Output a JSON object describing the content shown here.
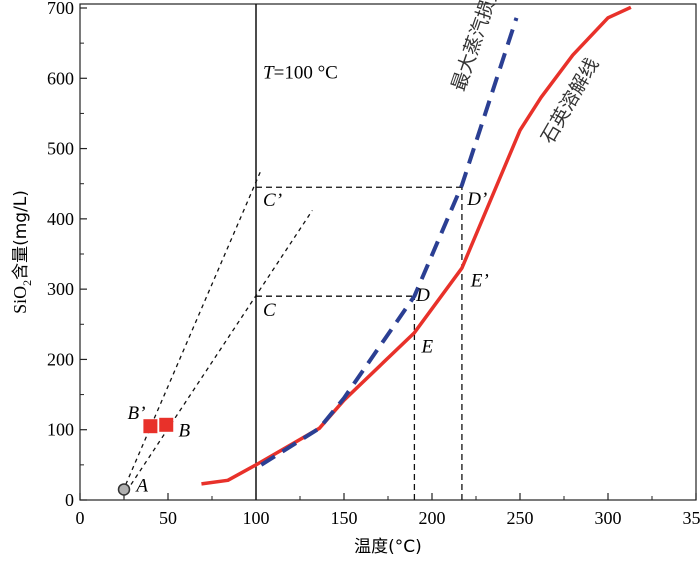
{
  "chart_data": {
    "type": "line",
    "xlabel": "温度(°C)",
    "ylabel_parts": [
      "SiO",
      "2",
      "含量(mg/L)"
    ],
    "xlim": [
      0,
      350
    ],
    "ylim": [
      0,
      700
    ],
    "xticks": [
      0,
      50,
      100,
      150,
      200,
      250,
      300,
      350
    ],
    "yticks": [
      0,
      100,
      200,
      300,
      400,
      500,
      600,
      700
    ],
    "grid": false,
    "series": [
      {
        "name": "石英溶解线",
        "style": "solid",
        "color": "#e8312a",
        "x": [
          69,
          84,
          100,
          136,
          150,
          190,
          217,
          250,
          262,
          280,
          300,
          313
        ],
        "y": [
          23,
          28,
          50,
          102,
          142,
          238,
          330,
          526,
          573,
          633,
          686,
          705
        ]
      },
      {
        "name": "最大蒸汽损失",
        "style": "dashed",
        "color": "#2b3f93",
        "x": [
          103,
          136,
          150,
          190,
          217,
          248
        ],
        "y": [
          50,
          102,
          145,
          290,
          448,
          686
        ]
      }
    ],
    "guides": [
      {
        "type": "vline",
        "x": 100,
        "style": "solid"
      },
      {
        "type": "segment",
        "x": [
          100,
          217
        ],
        "y": [
          445,
          445
        ],
        "style": "dashed"
      },
      {
        "type": "segment",
        "x": [
          217,
          217
        ],
        "y": [
          0,
          445
        ],
        "style": "dashed"
      },
      {
        "type": "segment",
        "x": [
          100,
          190
        ],
        "y": [
          290,
          290
        ],
        "style": "dashed"
      },
      {
        "type": "segment",
        "x": [
          190,
          190
        ],
        "y": [
          0,
          290
        ],
        "style": "dashed"
      },
      {
        "type": "segment",
        "x": [
          26,
          103
        ],
        "y": [
          22,
          470
        ],
        "style": "dotted"
      },
      {
        "type": "segment",
        "x": [
          29,
          132
        ],
        "y": [
          22,
          412
        ],
        "style": "dotted"
      }
    ],
    "points": [
      {
        "name": "A",
        "x": 25,
        "y": 15,
        "marker": "circle",
        "color": "#b0b0b0"
      },
      {
        "name": "B'",
        "x": 40,
        "y": 105,
        "marker": "square",
        "color": "#e8312a"
      },
      {
        "name": "B",
        "x": 49,
        "y": 107,
        "marker": "square",
        "color": "#e8312a"
      }
    ],
    "annotations": [
      {
        "text": "T",
        "suffix": "=100 °C",
        "x": 104,
        "y": 600
      },
      {
        "text": "A",
        "x": 32,
        "y": 12
      },
      {
        "text": "B’",
        "x": 27,
        "y": 115
      },
      {
        "text": "B",
        "x": 56,
        "y": 90
      },
      {
        "text": "C’",
        "x": 104,
        "y": 418
      },
      {
        "text": "C",
        "x": 104,
        "y": 262
      },
      {
        "text": "D’",
        "x": 220,
        "y": 420
      },
      {
        "text": "D",
        "x": 191,
        "y": 283
      },
      {
        "text": "E’",
        "x": 222,
        "y": 304
      },
      {
        "text": "E",
        "x": 194,
        "y": 210
      },
      {
        "text": "最大蒸汽损失",
        "x": 218,
        "y": 580,
        "rotate": -71,
        "cn": true
      },
      {
        "text": "石英溶解线",
        "x": 268,
        "y": 505,
        "rotate": -60,
        "cn": true
      }
    ]
  }
}
